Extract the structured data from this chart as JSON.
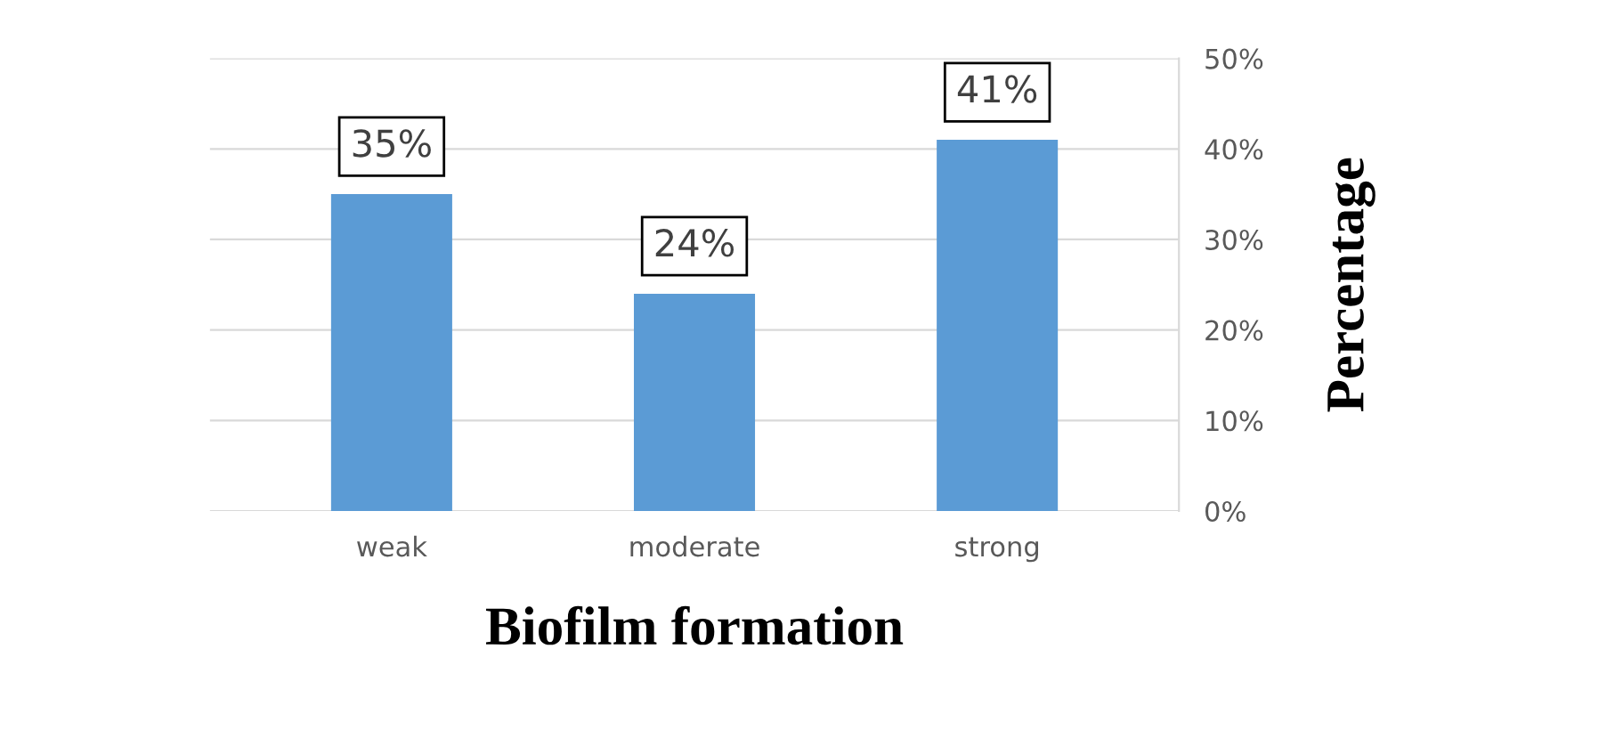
{
  "chart_data": {
    "type": "bar",
    "xlabel": "Biofilm formation",
    "ylabel": "Percentage",
    "categories": [
      "weak",
      "moderate",
      "strong"
    ],
    "values": [
      35,
      24,
      41
    ],
    "color": "#5b9bd5",
    "value_labels": [
      "35%",
      "24%",
      "41%"
    ],
    "ylim": [
      0,
      50
    ],
    "yticks": [
      {
        "value": 0,
        "label": "0%"
      },
      {
        "value": 10,
        "label": "10%"
      },
      {
        "value": 20,
        "label": "20%"
      },
      {
        "value": 30,
        "label": "30%"
      },
      {
        "value": 40,
        "label": "40%"
      },
      {
        "value": 50,
        "label": "50%"
      }
    ],
    "grid": "y",
    "legend": false
  }
}
